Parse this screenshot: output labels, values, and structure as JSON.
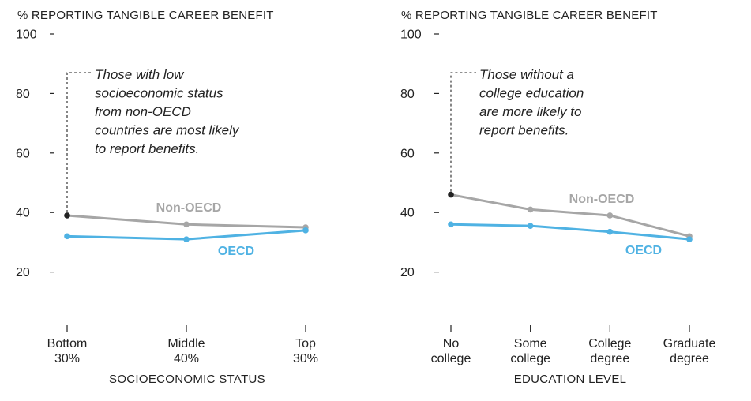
{
  "chart_data": [
    {
      "type": "line",
      "ylabel": "% REPORTING TANGIBLE CAREER BENEFIT",
      "xlabel": "SOCIOECONOMIC STATUS",
      "ylim": [
        0,
        100
      ],
      "yticks": [
        20,
        40,
        60,
        80,
        100
      ],
      "categories": [
        [
          "Bottom",
          "30%"
        ],
        [
          "Middle",
          "40%"
        ],
        [
          "Top",
          "30%"
        ]
      ],
      "series": [
        {
          "name": "Non-OECD",
          "color": "#a6a6a6",
          "values": [
            39,
            36,
            35
          ]
        },
        {
          "name": "OECD",
          "color": "#4fb2e3",
          "values": [
            32,
            31,
            34
          ]
        }
      ],
      "highlight": {
        "series": 0,
        "index": 0,
        "color": "#222222"
      },
      "annotation": [
        "Those with low",
        "socioeconomic status",
        "from non-OECD",
        "countries are most likely",
        "to report benefits."
      ]
    },
    {
      "type": "line",
      "ylabel": "% REPORTING TANGIBLE CAREER BENEFIT",
      "xlabel": "EDUCATION LEVEL",
      "ylim": [
        0,
        100
      ],
      "yticks": [
        20,
        40,
        60,
        80,
        100
      ],
      "categories": [
        [
          "No",
          "college"
        ],
        [
          "Some",
          "college"
        ],
        [
          "College",
          "degree"
        ],
        [
          "Graduate",
          "degree"
        ]
      ],
      "series": [
        {
          "name": "Non-OECD",
          "color": "#a6a6a6",
          "values": [
            46,
            41,
            39,
            32
          ]
        },
        {
          "name": "OECD",
          "color": "#4fb2e3",
          "values": [
            36,
            35.5,
            33.5,
            31
          ]
        }
      ],
      "highlight": {
        "series": 0,
        "index": 0,
        "color": "#222222"
      },
      "annotation": [
        "Those without a",
        "college education",
        "are more likely to",
        "report benefits."
      ]
    }
  ]
}
